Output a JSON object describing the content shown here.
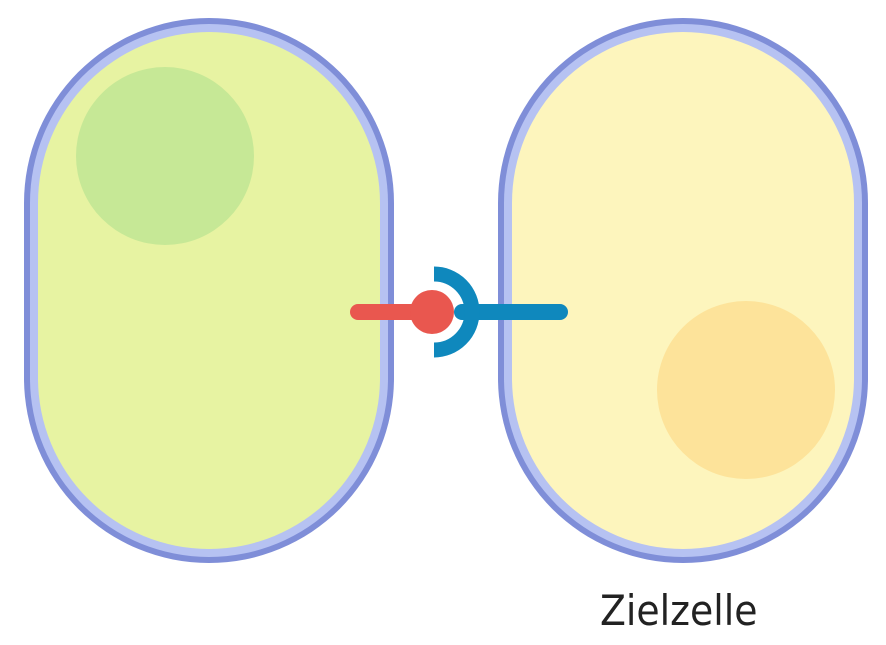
{
  "labels": {
    "target_cell": "Zielzelle"
  },
  "colors": {
    "membrane_outer": "#7f8ed8",
    "membrane_inner": "#b6c2f2",
    "signal_cell_cytoplasm": "#e7f3a2",
    "signal_cell_nucleus": "#c6e896",
    "target_cell_cytoplasm": "#fdf5bd",
    "target_cell_nucleus": "#fde39a",
    "ligand": "#e9574f",
    "receptor": "#0f88bd"
  },
  "elements": {
    "ligand": "ligand",
    "receptor": "receptor"
  }
}
